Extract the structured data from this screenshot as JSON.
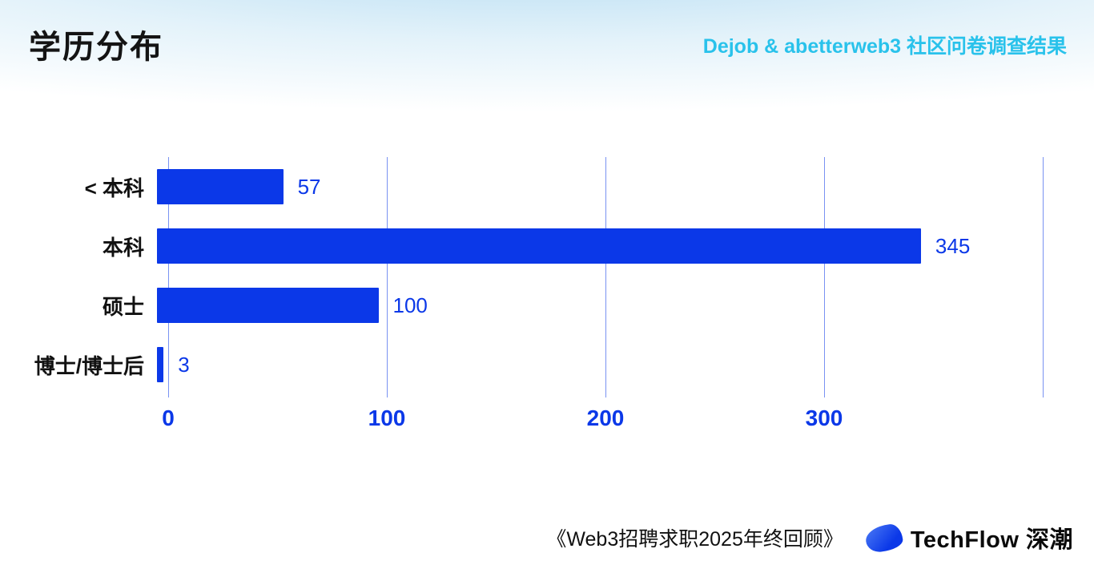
{
  "header": {
    "title": "学历分布",
    "subtitle": "Dejob & abetterweb3 社区问卷调查结果"
  },
  "chart_data": {
    "type": "bar",
    "orientation": "horizontal",
    "title": "学历分布",
    "categories": [
      "< 本科",
      "本科",
      "硕士",
      "博士/博士后"
    ],
    "values": [
      57,
      345,
      100,
      3
    ],
    "xlim": [
      0,
      400
    ],
    "xticks": [
      0,
      100,
      200,
      300
    ],
    "grid_lines": [
      0,
      100,
      200,
      300,
      400
    ],
    "grid": true,
    "legend": false,
    "bar_color": "#0B38E8",
    "value_label_color": "#0B38E8",
    "tick_label_color": "#0B38E8"
  },
  "footer": {
    "source": "《Web3招聘求职2025年终回顾》",
    "brand": "TechFlow 深潮"
  },
  "colors": {
    "accent_blue": "#0B38E8",
    "accent_cyan": "#29C2EB"
  }
}
